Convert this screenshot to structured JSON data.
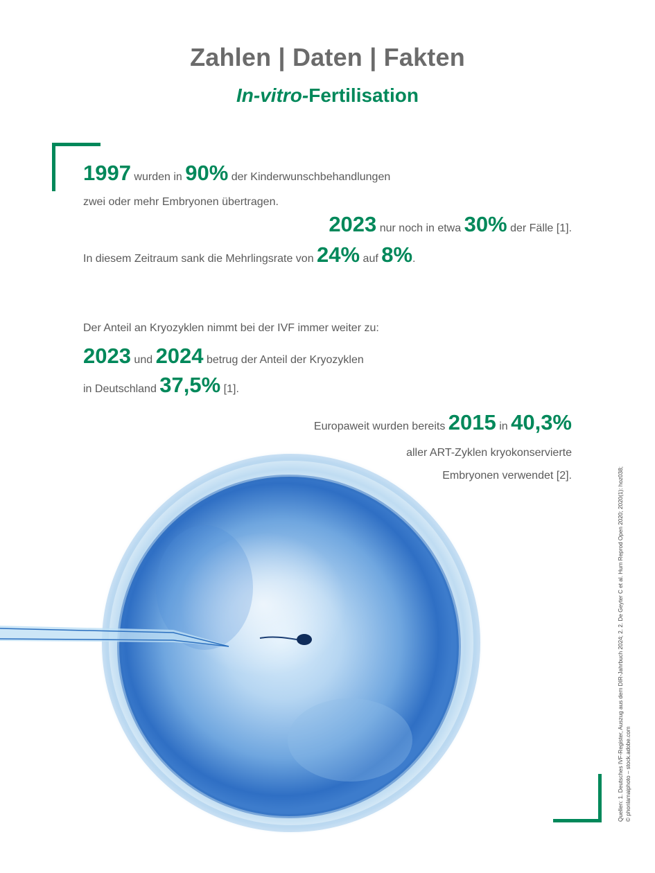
{
  "header": {
    "title": "Zahlen | Daten | Fakten",
    "subtitle_italic": "In-vitro-",
    "subtitle_rest": "Fertilisation"
  },
  "block1": {
    "year1": "1997",
    "t1": " wurden in ",
    "pct1": "90%",
    "t2": " der Kinderwunschbehandlungen",
    "line2": "zwei oder mehr Embryonen übertragen.",
    "year2": "2023",
    "t3": " nur noch in etwa ",
    "pct2": "30%",
    "t4": " der Fälle [1].",
    "t5": "In diesem Zeitraum sank die Mehrlingsrate von ",
    "pct3": "24%",
    "t6": " auf ",
    "pct4": "8%",
    "t7": "."
  },
  "block2": {
    "intro": "Der Anteil an Kryozyklen nimmt bei der IVF immer weiter zu:",
    "year1": "2023",
    "t1": " und ",
    "year2": "2024",
    "t2": " betrug der Anteil der Kryozyklen",
    "t3": "in Deutschland ",
    "pct": "37,5%",
    "t4": " [1]."
  },
  "block3": {
    "t1": "Europaweit wurden bereits ",
    "year": "2015",
    "t2": " in ",
    "pct": "40,3%",
    "line2": "aller ART-Zyklen kryokonservierte",
    "line3": "Embryonen verwendet [2]."
  },
  "credits": {
    "line1": "Quellen: 1. Deutsches IVF-Register, Auszug aus dem DIR-Jahrbuch 2024; 2. 2. De Geyter C et al. Hum Reprod Open 2020; 2020(1): hoz038;",
    "line2": "© phonlamaiphoto – stock.adobe.com"
  },
  "colors": {
    "accent": "#00885a",
    "text": "#5a5a5a",
    "title": "#6b6b6b",
    "egg_blue": "#3f7fd0"
  },
  "image": {
    "icon": "egg-cell-injection-illustration"
  }
}
